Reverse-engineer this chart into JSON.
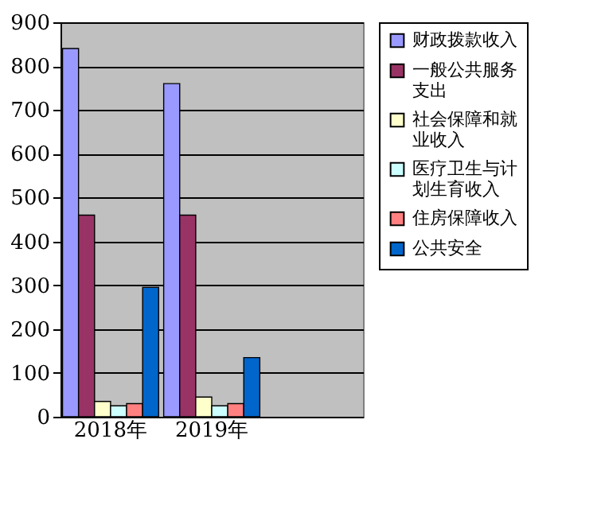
{
  "chart_data": {
    "type": "bar",
    "categories": [
      "2018年",
      "2019年",
      null
    ],
    "series": [
      {
        "name": "财政拨款收入",
        "color": "#9999ff",
        "values": [
          840,
          760,
          null
        ]
      },
      {
        "name": "一般公共服务支出",
        "color": "#993366",
        "values": [
          460,
          460,
          null
        ]
      },
      {
        "name": "社会保障和就业收入",
        "color": "#ffffcc",
        "values": [
          35,
          45,
          null
        ]
      },
      {
        "name": "医疗卫生与计划生育收入",
        "color": "#ccffff",
        "values": [
          25,
          25,
          null
        ]
      },
      {
        "name": "住房保障收入",
        "color": "#ff8080",
        "values": [
          30,
          30,
          null
        ]
      },
      {
        "name": "公共安全",
        "color": "#0066cc",
        "values": [
          295,
          135,
          null
        ]
      }
    ],
    "ylim": [
      0,
      900
    ],
    "yticks": [
      0,
      100,
      200,
      300,
      400,
      500,
      600,
      700,
      800,
      900
    ],
    "grid": "y",
    "legend": "right"
  }
}
